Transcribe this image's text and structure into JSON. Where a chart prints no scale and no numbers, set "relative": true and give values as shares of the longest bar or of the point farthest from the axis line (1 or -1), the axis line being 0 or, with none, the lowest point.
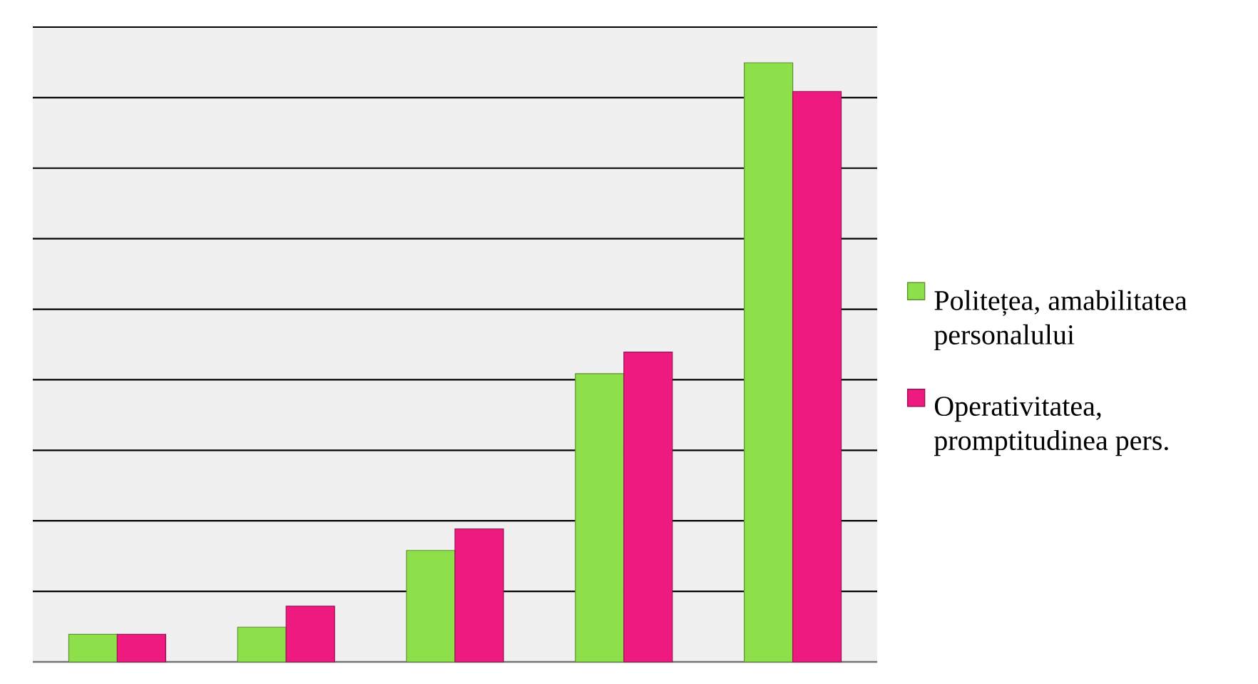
{
  "chart_data": {
    "type": "bar",
    "relative": true,
    "categories": [
      null,
      null,
      null,
      null,
      null
    ],
    "series": [
      {
        "name": "Politețea, amabilitatea personalului",
        "color": "#8ee04a",
        "values": [
          0.046,
          0.058,
          0.186,
          0.481,
          1
        ]
      },
      {
        "name": "Operativitatea, promptitudinea pers.",
        "color": "#ee1a80",
        "values": [
          0.046,
          0.093,
          0.222,
          0.517,
          0.952
        ]
      }
    ],
    "grid": "y",
    "legend": "right"
  }
}
